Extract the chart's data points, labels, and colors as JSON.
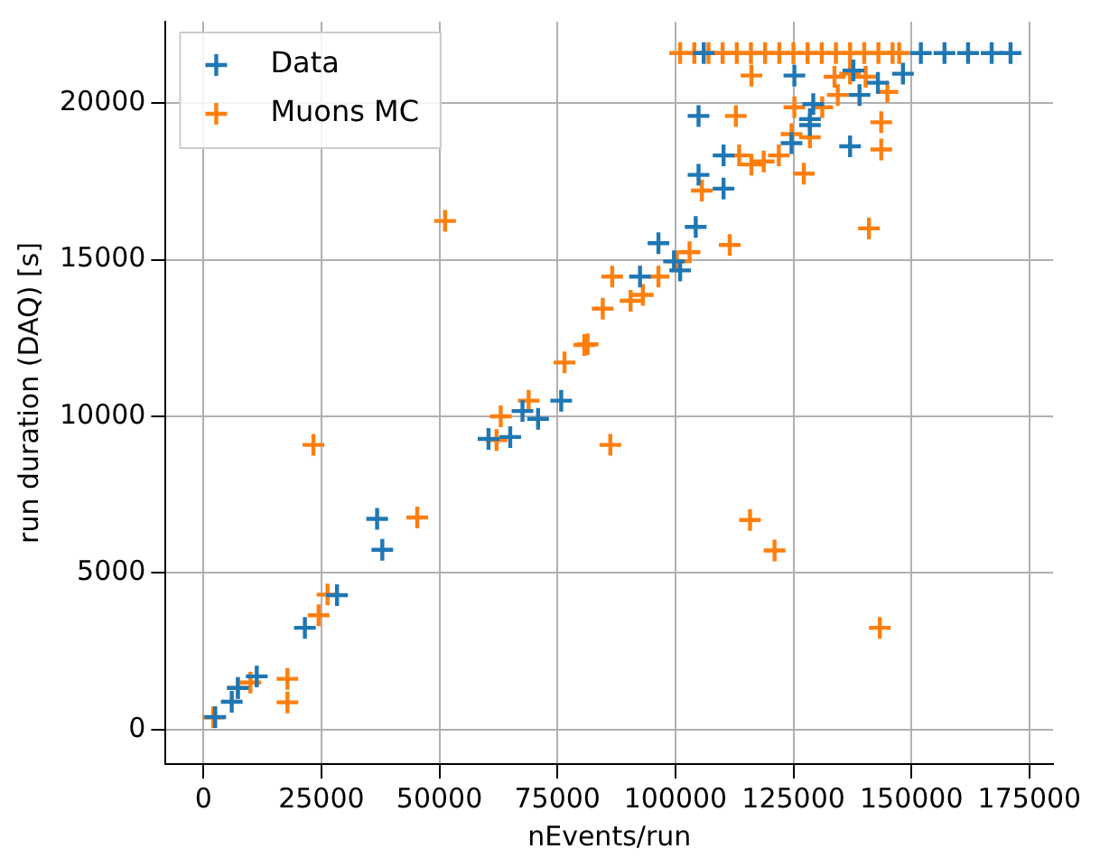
{
  "chart_data": {
    "type": "scatter",
    "xlabel": "nEvents/run",
    "ylabel": "run duration (DAQ) [s]",
    "xlim": [
      -8000,
      180000
    ],
    "xticks": [
      0,
      25000,
      50000,
      75000,
      100000,
      125000,
      150000,
      175000
    ],
    "ylim": [
      -1100,
      22600
    ],
    "yticks": [
      0,
      5000,
      10000,
      15000,
      20000
    ],
    "grid": true,
    "legend": "top left",
    "marker": "cross",
    "series": [
      {
        "name": "Data",
        "color": "#1f77b4",
        "x": [
          2500,
          6000,
          7300,
          11300,
          21500,
          28300,
          36800,
          37900,
          60400,
          65000,
          67600,
          70900,
          75800,
          92500,
          96400,
          99700,
          101000,
          104300,
          104900,
          104900,
          110200,
          110200,
          124600,
          125200,
          128500,
          128500,
          129200,
          137000,
          137700,
          139000,
          142900,
          148200,
          106000,
          152000,
          157000,
          162000,
          167000,
          171000
        ],
        "values": [
          400,
          890,
          1330,
          1700,
          3250,
          4290,
          6730,
          5740,
          9280,
          9340,
          10170,
          9920,
          10500,
          14460,
          15530,
          14950,
          14660,
          16050,
          19590,
          17710,
          18330,
          17270,
          18720,
          20880,
          19490,
          19300,
          19970,
          18620,
          21040,
          20260,
          20650,
          20940,
          21600,
          21600,
          21600,
          21600,
          21600,
          21600
        ]
      },
      {
        "name": "Muons MC",
        "color": "#ff7f0e",
        "x": [
          2100,
          7300,
          9950,
          17800,
          17800,
          23300,
          24400,
          26300,
          45300,
          51200,
          62100,
          63000,
          68900,
          76500,
          80700,
          81400,
          84600,
          86600,
          86200,
          90500,
          93100,
          96400,
          100300,
          103000,
          105600,
          111500,
          112800,
          113500,
          115800,
          116100,
          116100,
          118700,
          121000,
          121900,
          124600,
          125200,
          127200,
          128500,
          131100,
          133700,
          134400,
          137000,
          140300,
          141000,
          143300,
          143600,
          143600,
          144900,
          101000,
          104000,
          107000,
          110000,
          113000,
          116000,
          119000,
          122000,
          125000,
          128000,
          131000,
          134000,
          137000,
          140000,
          143000,
          146000,
          147400
        ],
        "values": [
          390,
          1330,
          1500,
          1620,
          870,
          9090,
          3650,
          4310,
          6770,
          16240,
          9240,
          10000,
          10500,
          11720,
          12280,
          12300,
          13440,
          14460,
          9090,
          13690,
          13880,
          14460,
          14950,
          15240,
          17210,
          15470,
          19590,
          18330,
          6690,
          20880,
          18040,
          18140,
          5720,
          18330,
          19010,
          19870,
          17750,
          18910,
          19870,
          20840,
          20260,
          20940,
          20840,
          16000,
          3250,
          19390,
          18520,
          20360,
          21600,
          21600,
          21600,
          21600,
          21600,
          21600,
          21600,
          21600,
          21600,
          21600,
          21600,
          21600,
          21600,
          21600,
          21600,
          21600,
          21600
        ]
      }
    ]
  }
}
